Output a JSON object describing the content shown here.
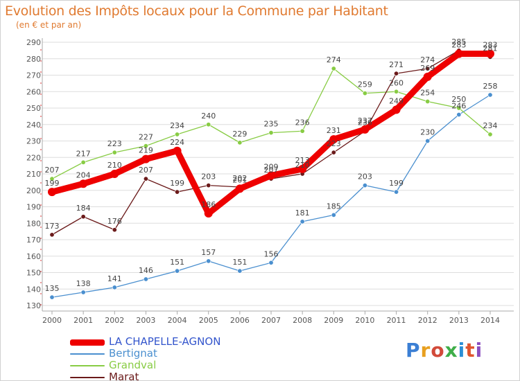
{
  "title": "Evolution des Impôts locaux pour la Commune par Habitant",
  "subtitle": "(en € et par an)",
  "logo_text": "Proxiti",
  "colors": {
    "title": "#e07a30",
    "grid": "#dddddd",
    "axis": "#aaaaaa",
    "tick_text": "#555555",
    "label_text": "#444444"
  },
  "chart_data": {
    "type": "line",
    "title": "Evolution des Impôts locaux pour la Commune par Habitant",
    "subtitle": "(en € et par an)",
    "x": [
      "2000",
      "2001",
      "2002",
      "2003",
      "2004",
      "2005",
      "2006",
      "2007",
      "2008",
      "2009",
      "2010",
      "2011",
      "2012",
      "2013",
      "2014"
    ],
    "xlabel": "",
    "ylabel": "",
    "ylim": [
      130,
      290
    ],
    "yticks": [
      130,
      140,
      150,
      160,
      170,
      180,
      190,
      200,
      210,
      220,
      230,
      240,
      250,
      260,
      270,
      280,
      290
    ],
    "grid": true,
    "legend": "bottom-left",
    "series": [
      {
        "name": "LA CHAPELLE-AGNON",
        "color": "#ee0000",
        "values": [
          199,
          204,
          210,
          219,
          224,
          186,
          201,
          209,
          213,
          231,
          237,
          249,
          269,
          283,
          283
        ],
        "emphasis": true
      },
      {
        "name": "Bertignat",
        "color": "#4a8fcf",
        "values": [
          135,
          138,
          141,
          146,
          151,
          157,
          151,
          156,
          181,
          185,
          203,
          199,
          230,
          246,
          258
        ]
      },
      {
        "name": "Grandval",
        "color": "#88cc44",
        "values": [
          207,
          217,
          223,
          227,
          234,
          240,
          229,
          235,
          236,
          274,
          259,
          260,
          254,
          250,
          234
        ]
      },
      {
        "name": "Marat",
        "color": "#6b1a1a",
        "values": [
          173,
          184,
          176,
          207,
          199,
          203,
          202,
          207,
          210,
          223,
          236,
          271,
          274,
          285,
          281
        ]
      }
    ]
  }
}
